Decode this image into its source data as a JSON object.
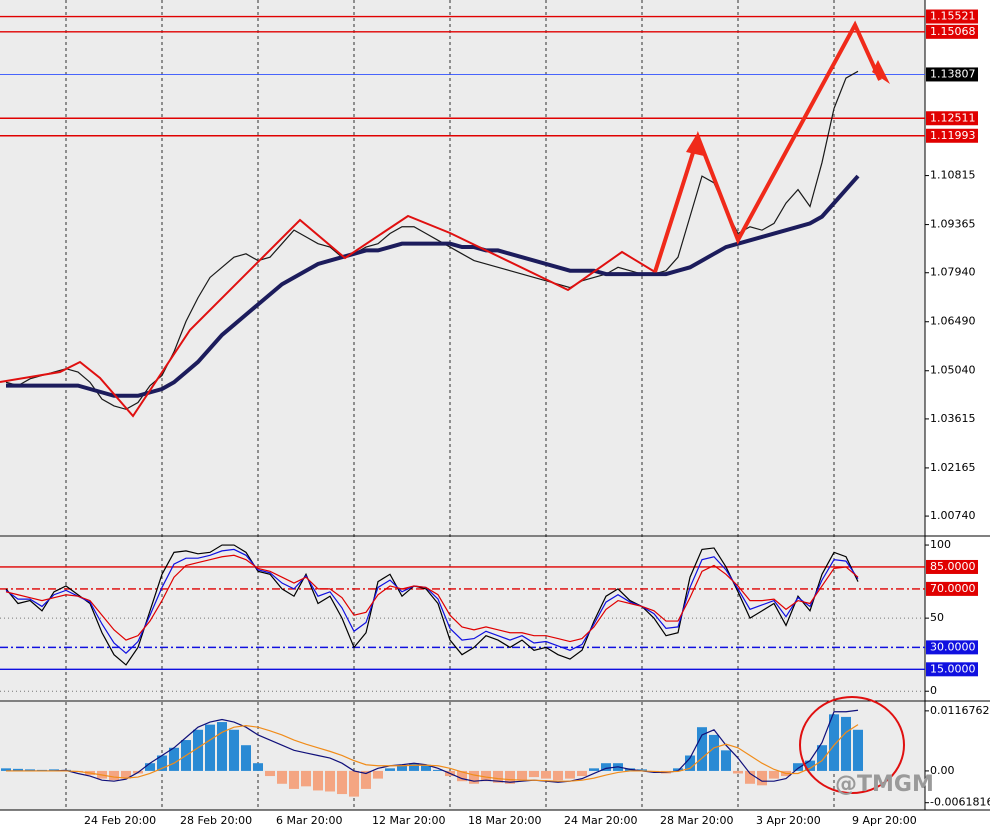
{
  "chart_data": [
    {
      "type": "line",
      "categories": [
        null,
        null,
        null,
        null,
        null,
        "24 Feb 20:00",
        null,
        null,
        null,
        null,
        null,
        null,
        null,
        "28 Feb 20:00",
        null,
        null,
        null,
        null,
        null,
        null,
        null,
        "6 Mar 20:00",
        null,
        null,
        null,
        null,
        null,
        null,
        null,
        "12 Mar 20:00",
        null,
        null,
        null,
        null,
        null,
        null,
        null,
        "18 Mar 20:00",
        null,
        null,
        null,
        null,
        null,
        null,
        null,
        "24 Mar 20:00",
        null,
        null,
        null,
        null,
        null,
        null,
        null,
        "28 Mar 20:00",
        null,
        null,
        null,
        null,
        null,
        null,
        null,
        "3 Apr 20:00",
        null,
        null,
        null,
        null,
        null,
        null,
        null,
        "9 Apr 20:00",
        null,
        null
      ],
      "series": [
        {
          "color": "#1a1a1a",
          "values": [
            1.047,
            1.046,
            1.048,
            1.049,
            1.05,
            1.051,
            1.05,
            1.047,
            1.042,
            1.04,
            1.039,
            1.041,
            1.046,
            1.049,
            1.056,
            1.065,
            1.072,
            1.078,
            1.081,
            1.084,
            1.085,
            1.083,
            1.084,
            1.088,
            1.092,
            1.09,
            1.088,
            1.087,
            1.084,
            1.085,
            1.087,
            1.088,
            1.091,
            1.093,
            1.093,
            1.091,
            1.089,
            1.087,
            1.085,
            1.083,
            1.082,
            1.081,
            1.08,
            1.079,
            1.078,
            1.077,
            1.076,
            1.075,
            1.077,
            1.078,
            1.079,
            1.081,
            1.08,
            1.079,
            1.079,
            1.08,
            1.084,
            1.096,
            1.108,
            1.106,
            1.098,
            1.091,
            1.093,
            1.092,
            1.094,
            1.1,
            1.104,
            1.099,
            1.112,
            1.128,
            1.137,
            1.139
          ]
        },
        {
          "color": "#1c1c5c",
          "values": [
            1.046,
            1.046,
            1.046,
            1.046,
            1.046,
            1.046,
            1.046,
            1.045,
            1.044,
            1.043,
            1.043,
            1.043,
            1.044,
            1.045,
            1.047,
            1.05,
            1.053,
            1.057,
            1.061,
            1.064,
            1.067,
            1.07,
            1.073,
            1.076,
            1.078,
            1.08,
            1.082,
            1.083,
            1.084,
            1.085,
            1.086,
            1.086,
            1.087,
            1.088,
            1.088,
            1.088,
            1.088,
            1.088,
            1.087,
            1.087,
            1.086,
            1.086,
            1.085,
            1.084,
            1.083,
            1.082,
            1.081,
            1.08,
            1.08,
            1.08,
            1.079,
            1.079,
            1.079,
            1.079,
            1.079,
            1.079,
            1.08,
            1.081,
            1.083,
            1.085,
            1.087,
            1.088,
            1.089,
            1.09,
            1.091,
            1.092,
            1.093,
            1.094,
            1.096,
            1.1,
            1.104,
            1.108
          ]
        }
      ],
      "ylim": [
        1.0018,
        1.1601
      ],
      "yticks": [
        {
          "value": 1.0074,
          "label": "1.00740"
        },
        1.02165,
        1.03615,
        {
          "value": 1.0504,
          "label": "1.05040"
        },
        {
          "value": 1.0649,
          "label": "1.06490"
        },
        {
          "value": 1.0794,
          "label": "1.07940"
        },
        1.09365,
        1.10815
      ],
      "levels": [
        {
          "value": 1.15521,
          "color": "#e00000"
        },
        {
          "value": 1.15068,
          "color": "#e00000"
        },
        {
          "value": 1.13807,
          "color": "#000000"
        },
        {
          "value": 1.12511,
          "color": "#e00000"
        },
        {
          "value": 1.11993,
          "color": "#e00000"
        }
      ]
    },
    {
      "type": "line",
      "series": [
        {
          "color": "#000000",
          "values": [
            70,
            60,
            62,
            55,
            68,
            72,
            66,
            60,
            40,
            25,
            18,
            30,
            55,
            80,
            95,
            96,
            94,
            95,
            100,
            100,
            95,
            82,
            80,
            70,
            65,
            80,
            60,
            65,
            50,
            30,
            40,
            75,
            80,
            65,
            72,
            70,
            60,
            35,
            25,
            30,
            38,
            35,
            30,
            35,
            28,
            30,
            25,
            22,
            28,
            48,
            65,
            70,
            62,
            58,
            50,
            38,
            40,
            78,
            97,
            98,
            85,
            68,
            50,
            55,
            60,
            45,
            65,
            55,
            80,
            95,
            92,
            75
          ]
        },
        {
          "color": "#1010e0",
          "values": [
            69,
            63,
            63,
            58,
            66,
            69,
            65,
            61,
            46,
            33,
            26,
            34,
            52,
            71,
            87,
            91,
            91,
            93,
            96,
            97,
            93,
            83,
            81,
            74,
            70,
            79,
            65,
            68,
            57,
            41,
            47,
            71,
            76,
            68,
            72,
            71,
            63,
            43,
            35,
            36,
            41,
            38,
            35,
            38,
            33,
            34,
            31,
            28,
            32,
            46,
            61,
            66,
            61,
            58,
            53,
            43,
            44,
            71,
            90,
            92,
            83,
            70,
            56,
            59,
            62,
            51,
            64,
            58,
            76,
            90,
            89,
            77
          ]
        },
        {
          "color": "#e00000",
          "values": [
            68,
            66,
            64,
            62,
            64,
            66,
            65,
            62,
            52,
            42,
            35,
            38,
            48,
            62,
            78,
            86,
            88,
            90,
            92,
            93,
            90,
            84,
            82,
            78,
            74,
            78,
            70,
            70,
            64,
            52,
            54,
            66,
            72,
            70,
            72,
            71,
            66,
            52,
            44,
            42,
            44,
            42,
            40,
            40,
            38,
            38,
            36,
            34,
            36,
            44,
            56,
            62,
            60,
            58,
            55,
            48,
            48,
            64,
            82,
            86,
            80,
            72,
            62,
            62,
            63,
            56,
            62,
            60,
            72,
            84,
            85,
            78
          ]
        }
      ],
      "ylim": [
        -6,
        105.5
      ],
      "yticks": [
        0,
        50,
        100
      ],
      "levels": [
        {
          "value": 85,
          "label": "85.0000",
          "color": "#e00000",
          "dash": false
        },
        {
          "value": 70,
          "label": "70.0000",
          "color": "#e00000",
          "dash": true
        },
        {
          "value": 30,
          "label": "30.0000",
          "color": "#1010e0",
          "dash": true
        },
        {
          "value": 15,
          "label": "15.0000",
          "color": "#1010e0",
          "dash": false
        }
      ]
    },
    {
      "type": "bar",
      "color": "#2a8ad4",
      "negative_color": "#f4a582",
      "values": [
        0.0005,
        0.0004,
        0.0003,
        0.0002,
        0.0003,
        0.0002,
        -0.0002,
        -0.0008,
        -0.0015,
        -0.0018,
        -0.0015,
        -0.0005,
        0.0015,
        0.003,
        0.0045,
        0.006,
        0.008,
        0.009,
        0.0095,
        0.008,
        0.005,
        0.0015,
        -0.001,
        -0.0025,
        -0.0035,
        -0.003,
        -0.0038,
        -0.004,
        -0.0045,
        -0.005,
        -0.0035,
        -0.0015,
        0.0005,
        0.001,
        0.0015,
        0.0012,
        0.0002,
        -0.001,
        -0.002,
        -0.0025,
        -0.002,
        -0.0023,
        -0.0025,
        -0.0018,
        -0.0012,
        -0.0015,
        -0.0018,
        -0.0015,
        -0.001,
        0.0005,
        0.0015,
        0.0015,
        0.0005,
        0.0003,
        -0.0002,
        -0.0005,
        0.0005,
        0.003,
        0.0085,
        0.007,
        0.004,
        -0.0005,
        -0.0025,
        -0.0028,
        -0.0015,
        -0.001,
        0.0015,
        0.002,
        0.005,
        0.011,
        0.0105,
        0.008
      ],
      "series": [
        {
          "color": "#10107a",
          "values": [
            0,
            0,
            0,
            0,
            0,
            0.0001,
            -0.0005,
            -0.001,
            -0.0018,
            -0.002,
            -0.0016,
            -0.0003,
            0.0015,
            0.003,
            0.0045,
            0.0065,
            0.0085,
            0.0095,
            0.01,
            0.0095,
            0.0085,
            0.007,
            0.006,
            0.005,
            0.004,
            0.0035,
            0.003,
            0.0025,
            0.0015,
            0,
            -0.0005,
            0.0005,
            0.001,
            0.0012,
            0.0015,
            0.0012,
            0.0005,
            -0.0005,
            -0.0015,
            -0.002,
            -0.0018,
            -0.002,
            -0.0022,
            -0.002,
            -0.0018,
            -0.002,
            -0.0022,
            -0.002,
            -0.0015,
            -0.0005,
            0.0005,
            0.0008,
            0.0003,
            0,
            -0.0003,
            -0.0003,
            0,
            0.0025,
            0.007,
            0.008,
            0.005,
            0.0025,
            -0.0005,
            -0.002,
            -0.002,
            -0.0015,
            0.0005,
            0.002,
            0.0055,
            0.0115,
            0.0115,
            0.0118
          ]
        },
        {
          "color": "#f08c1a",
          "values": [
            0,
            0,
            0,
            0,
            0,
            0,
            -0.0001,
            -0.0004,
            -0.0008,
            -0.0012,
            -0.0014,
            -0.0012,
            -0.0005,
            0.0005,
            0.0015,
            0.003,
            0.0045,
            0.006,
            0.0075,
            0.0085,
            0.0088,
            0.0085,
            0.0078,
            0.007,
            0.006,
            0.0052,
            0.0045,
            0.0038,
            0.003,
            0.002,
            0.0012,
            0.001,
            0.001,
            0.001,
            0.0011,
            0.0011,
            0.001,
            0.0005,
            -0.0002,
            -0.0008,
            -0.0012,
            -0.0015,
            -0.0017,
            -0.0018,
            -0.0018,
            -0.0019,
            -0.002,
            -0.002,
            -0.0018,
            -0.0014,
            -0.0008,
            -0.0003,
            0,
            0,
            -0.0001,
            -0.0002,
            -0.0001,
            0.0005,
            0.0025,
            0.0045,
            0.0052,
            0.0045,
            0.003,
            0.0015,
            0.0003,
            -0.0005,
            -0.0005,
            0.0005,
            0.002,
            0.005,
            0.0075,
            0.009
          ]
        }
      ],
      "ylim": [
        -0.0076,
        0.0134
      ],
      "yticks": [
        -0.0061816,
        {
          "value": 0,
          "label": "0.00"
        },
        0.0116762
      ],
      "watermark": "@TMGM"
    }
  ]
}
